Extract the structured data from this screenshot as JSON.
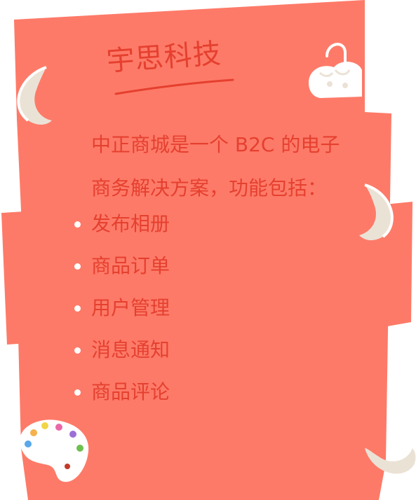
{
  "brand": {
    "title": "宇思科技"
  },
  "intro": {
    "line1": "中正商城是一个 B2C 的电子",
    "line2": "商务解决方案，功能包括："
  },
  "features": [
    "发布相册",
    "商品订单",
    "用户管理",
    "消息通知",
    "商品评论"
  ],
  "colors": {
    "card": "#fe7a68",
    "text": "#e5402f",
    "bullet": "#ffffff",
    "accent_cream": "#ebe2d6"
  },
  "icons": {
    "decor": [
      "moon-crescent-icon",
      "cloud-icon",
      "palette-icon",
      "magnet-icon"
    ]
  }
}
